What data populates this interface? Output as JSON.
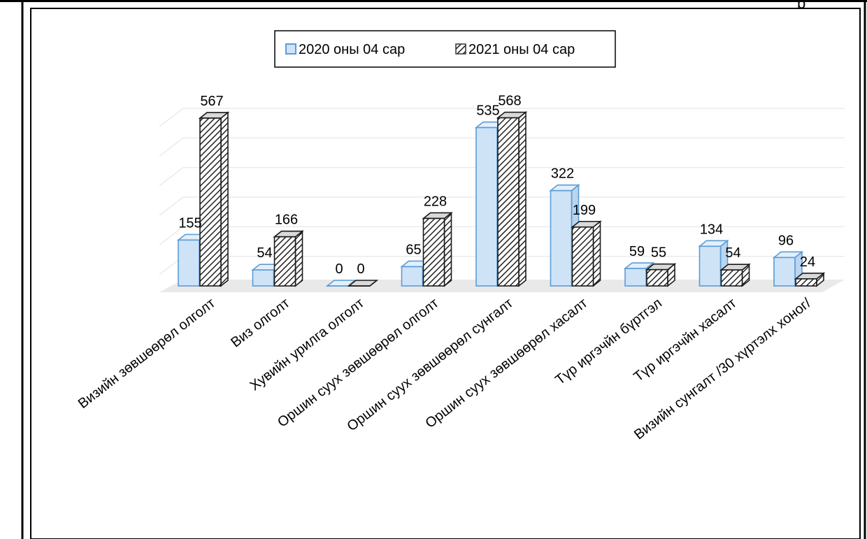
{
  "chart_data": {
    "type": "bar",
    "style": "3d-clustered-column",
    "categories": [
      "Визийн зөвшөөрөл олголт",
      "Виз олголт",
      "Хувийн урилга олголт",
      "Оршин суух зөвшөөрөл олголт",
      "Оршин суух зөвшөөрөл сунгалт",
      "Оршин суух зөвшөөрөл хасалт",
      "Түр иргэчйн бүртгэл",
      "Түр иргэчйн хасалт",
      "Визийн сунгалт /30 хүртэлх хоног/"
    ],
    "series": [
      {
        "name": "2020 оны 04 сар",
        "values": [
          155,
          54,
          0,
          65,
          535,
          322,
          59,
          134,
          96
        ],
        "color": "#cfe3f7",
        "edge": "#5b9bd5",
        "pattern": "solid"
      },
      {
        "name": "2021 оны 04 сар",
        "values": [
          567,
          166,
          0,
          228,
          568,
          199,
          55,
          54,
          24
        ],
        "color": "#ffffff",
        "edge": "#1a1a1a",
        "pattern": "diagonal-hatch"
      }
    ],
    "ylim": [
      0,
      600
    ],
    "grid": true,
    "legend": "top-center",
    "data_labels": true,
    "top_right_text": "р"
  }
}
